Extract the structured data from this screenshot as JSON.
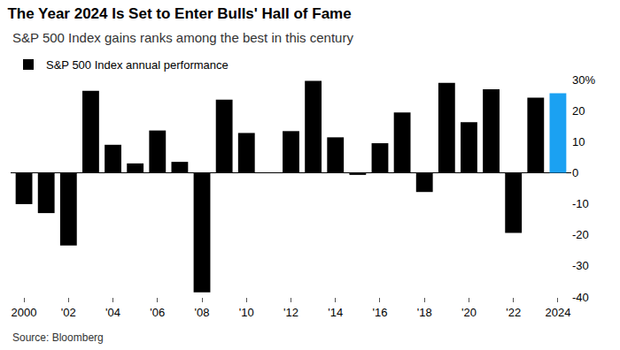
{
  "chart_data": {
    "type": "bar",
    "title": "The Year 2024 Is Set to Enter Bulls' Hall of Fame",
    "subtitle": "S&P 500 Index gains ranks among the best in this century",
    "source": "Source: Bloomberg",
    "categories": [
      "2000",
      null,
      "'02",
      null,
      "'04",
      null,
      "'06",
      null,
      "'08",
      null,
      "'10",
      null,
      "'12",
      null,
      "'14",
      null,
      "'16",
      null,
      "'18",
      null,
      "'20",
      null,
      "'22",
      null,
      "2024"
    ],
    "series": [
      {
        "name": "S&P 500 Index annual performance",
        "values": [
          -10.1,
          -13.0,
          -23.4,
          26.4,
          9.0,
          3.0,
          13.6,
          3.5,
          -38.5,
          23.5,
          12.8,
          0.0,
          13.4,
          29.6,
          11.4,
          -0.7,
          9.5,
          19.4,
          -6.2,
          28.9,
          16.3,
          26.9,
          -19.4,
          24.2,
          25.6
        ]
      }
    ],
    "colors": [
      "#000000",
      "#000000",
      "#000000",
      "#000000",
      "#000000",
      "#000000",
      "#000000",
      "#000000",
      "#000000",
      "#000000",
      "#000000",
      "#000000",
      "#000000",
      "#000000",
      "#000000",
      "#000000",
      "#000000",
      "#000000",
      "#000000",
      "#000000",
      "#000000",
      "#000000",
      "#000000",
      "#000000",
      "#1ba1f2"
    ],
    "ylim": [
      -40,
      30
    ],
    "yticks": [
      {
        "value": 30,
        "label": "30%"
      },
      20,
      10,
      0,
      -10,
      -20,
      -30,
      -40
    ],
    "grid": false,
    "legend": "top left",
    "data_labels": false
  }
}
